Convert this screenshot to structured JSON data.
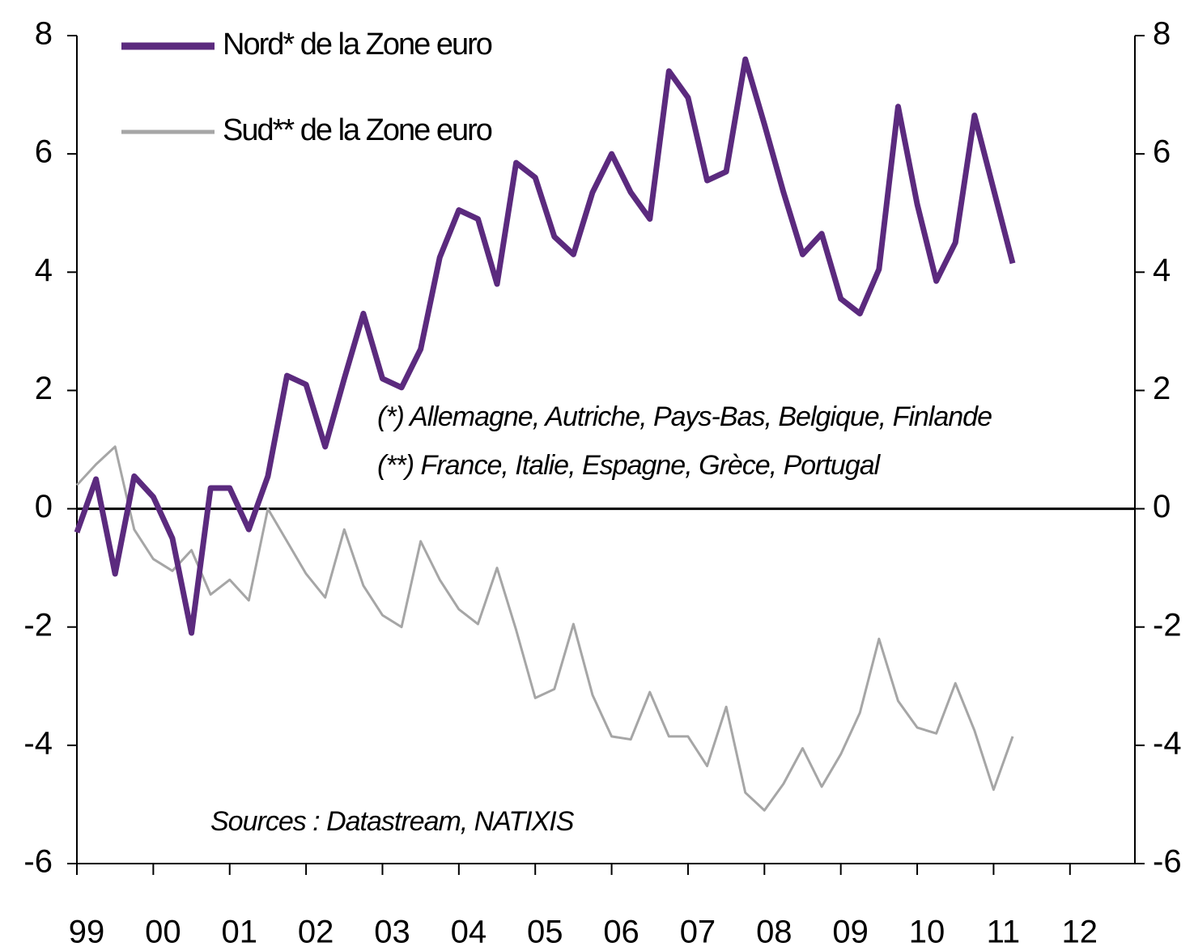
{
  "chart_data": {
    "type": "line",
    "x": [
      1999,
      1999.25,
      1999.5,
      1999.75,
      2000,
      2000.25,
      2000.5,
      2000.75,
      2001,
      2001.25,
      2001.5,
      2001.75,
      2002,
      2002.25,
      2002.5,
      2002.75,
      2003,
      2003.25,
      2003.5,
      2003.75,
      2004,
      2004.25,
      2004.5,
      2004.75,
      2005,
      2005.25,
      2005.5,
      2005.75,
      2006,
      2006.25,
      2006.5,
      2006.75,
      2007,
      2007.25,
      2007.5,
      2007.75,
      2008,
      2008.25,
      2008.5,
      2008.75,
      2009,
      2009.25,
      2009.5,
      2009.75,
      2010,
      2010.25,
      2010.5,
      2010.75,
      2011,
      2011.25
    ],
    "series": [
      {
        "name": "Nord* de la Zone euro",
        "color": "#5b2a7e",
        "width": 7,
        "values": [
          -0.4,
          0.5,
          -1.1,
          0.55,
          0.2,
          -0.5,
          -2.1,
          0.35,
          0.35,
          -0.35,
          0.55,
          2.25,
          2.1,
          1.05,
          2.2,
          3.3,
          2.2,
          2.05,
          2.7,
          4.25,
          5.05,
          4.9,
          3.8,
          5.85,
          5.6,
          4.6,
          4.3,
          5.35,
          6.0,
          5.35,
          4.9,
          7.4,
          6.95,
          5.55,
          5.7,
          7.6,
          6.5,
          5.35,
          4.3,
          4.65,
          3.55,
          3.3,
          4.05,
          6.8,
          5.15,
          3.85,
          4.5,
          6.65,
          5.4,
          4.15
        ]
      },
      {
        "name": "Sud** de la Zone euro",
        "color": "#a6a6a6",
        "width": 3,
        "values": [
          0.4,
          0.75,
          1.05,
          -0.35,
          -0.85,
          -1.05,
          -0.7,
          -1.45,
          -1.2,
          -1.55,
          0.0,
          -0.55,
          -1.1,
          -1.5,
          -0.35,
          -1.3,
          -1.8,
          -2.0,
          -0.55,
          -1.2,
          -1.7,
          -1.95,
          -1.0,
          -2.05,
          -3.2,
          -3.05,
          -1.95,
          -3.15,
          -3.85,
          -3.9,
          -3.1,
          -3.85,
          -3.85,
          -4.35,
          -3.35,
          -4.8,
          -5.1,
          -4.65,
          -4.05,
          -4.7,
          -4.15,
          -3.45,
          -2.2,
          -3.25,
          -3.7,
          -3.8,
          -2.95,
          -3.75,
          -4.75,
          -3.85
        ]
      }
    ],
    "xlim": [
      1999,
      2012.85
    ],
    "xticks": [
      {
        "value": 1999,
        "label": "99"
      },
      {
        "value": 2000,
        "label": "00"
      },
      {
        "value": 2001,
        "label": "01"
      },
      {
        "value": 2002,
        "label": "02"
      },
      {
        "value": 2003,
        "label": "03"
      },
      {
        "value": 2004,
        "label": "04"
      },
      {
        "value": 2005,
        "label": "05"
      },
      {
        "value": 2006,
        "label": "06"
      },
      {
        "value": 2007,
        "label": "07"
      },
      {
        "value": 2008,
        "label": "08"
      },
      {
        "value": 2009,
        "label": "09"
      },
      {
        "value": 2010,
        "label": "10"
      },
      {
        "value": 2011,
        "label": "11"
      },
      {
        "value": 2012,
        "label": "12"
      }
    ],
    "ylim": [
      -6,
      8
    ],
    "yticks": [
      -6,
      -4,
      -2,
      0,
      2,
      4,
      6,
      8
    ],
    "y2lim": [
      -6,
      8
    ],
    "y2ticks": [
      -6,
      -4,
      -2,
      0,
      2,
      4,
      6,
      8
    ],
    "annotations": [
      "(*) Allemagne, Autriche, Pays-Bas, Belgique, Finlande",
      "(**) France, Italie, Espagne, Grèce, Portugal",
      "Sources : Datastream, NATIXIS"
    ]
  }
}
